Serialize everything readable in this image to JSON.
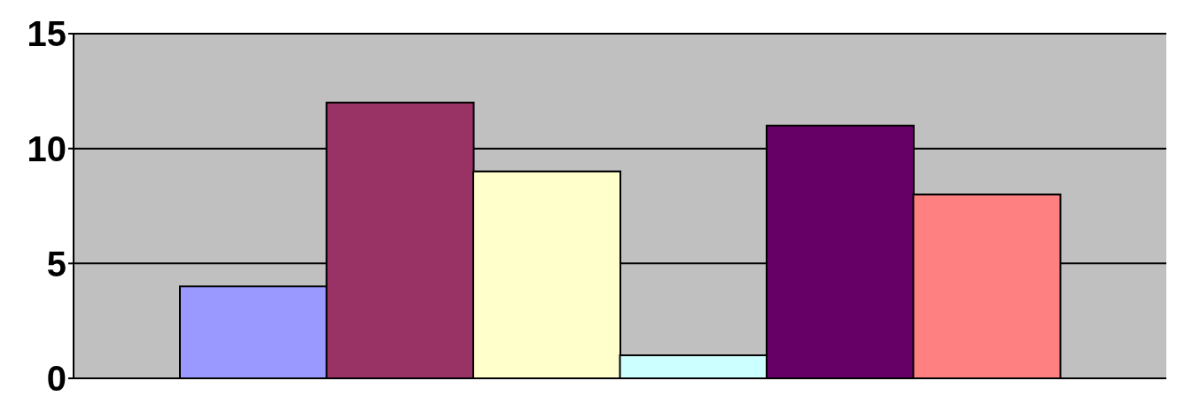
{
  "chart_data": {
    "type": "bar",
    "categories": [
      null,
      null,
      null,
      null,
      null,
      null
    ],
    "values": [
      4,
      12,
      9,
      1,
      11,
      8
    ],
    "colors": [
      "#9999ff",
      "#993366",
      "#ffffcc",
      "#ccffff",
      "#660066",
      "#ff8080"
    ],
    "ylim": [
      0,
      15
    ],
    "yticks": [
      0,
      5,
      10,
      15
    ],
    "grid": "y"
  }
}
